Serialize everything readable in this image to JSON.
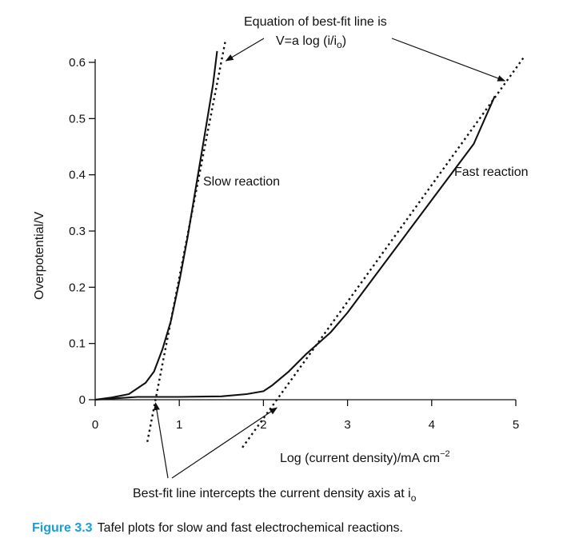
{
  "chart_data": {
    "type": "line",
    "xlabel": "Log (current density)/mA cm",
    "xlabel_superscript": "−2",
    "ylabel": "Overpotential/V",
    "xlim": [
      0,
      5
    ],
    "ylim": [
      0,
      0.6
    ],
    "x_ticks": [
      0,
      1,
      2,
      3,
      4,
      5
    ],
    "y_ticks": [
      0,
      0.1,
      0.2,
      0.3,
      0.4,
      0.5,
      0.6
    ],
    "x_tick_labels": [
      "0",
      "1",
      "2",
      "3",
      "4",
      "5"
    ],
    "y_tick_labels": [
      "0",
      "0.1",
      "0.2",
      "0.3",
      "0.4",
      "0.5",
      "0.6"
    ],
    "grid": false,
    "series": [
      {
        "name": "Slow reaction",
        "x": [
          0,
          0.2,
          0.4,
          0.6,
          0.7,
          0.8,
          0.9,
          1.0,
          1.1,
          1.2,
          1.3,
          1.4,
          1.45
        ],
        "y": [
          0,
          0.004,
          0.01,
          0.03,
          0.05,
          0.09,
          0.14,
          0.21,
          0.29,
          0.38,
          0.47,
          0.56,
          0.62
        ]
      },
      {
        "name": "Fast reaction",
        "x": [
          0,
          0.5,
          1.0,
          1.5,
          1.8,
          2.0,
          2.1,
          2.3,
          2.5,
          2.8,
          3.0,
          3.5,
          4.0,
          4.5,
          4.75
        ],
        "y": [
          0,
          0.005,
          0.005,
          0.006,
          0.01,
          0.015,
          0.025,
          0.05,
          0.08,
          0.12,
          0.155,
          0.255,
          0.355,
          0.455,
          0.54
        ]
      }
    ],
    "fit_lines": [
      {
        "x": [
          0.62,
          1.55
        ],
        "y": [
          -0.075,
          0.64
        ]
      },
      {
        "x": [
          1.75,
          5.1
        ],
        "y": [
          -0.085,
          0.61
        ]
      }
    ],
    "annotations": {
      "equation_line1": "Equation of best-fit line is",
      "equation_line2": "V=a log (i/i",
      "equation_sub": "o",
      "equation_close": ")",
      "slow_label": "Slow reaction",
      "fast_label": "Fast reaction",
      "intercept_text": "Best-fit line intercepts the current density axis at i",
      "intercept_sub": "o"
    }
  },
  "caption": {
    "label": "Figure 3.3",
    "text": "Tafel plots for slow and fast electrochemical reactions."
  }
}
